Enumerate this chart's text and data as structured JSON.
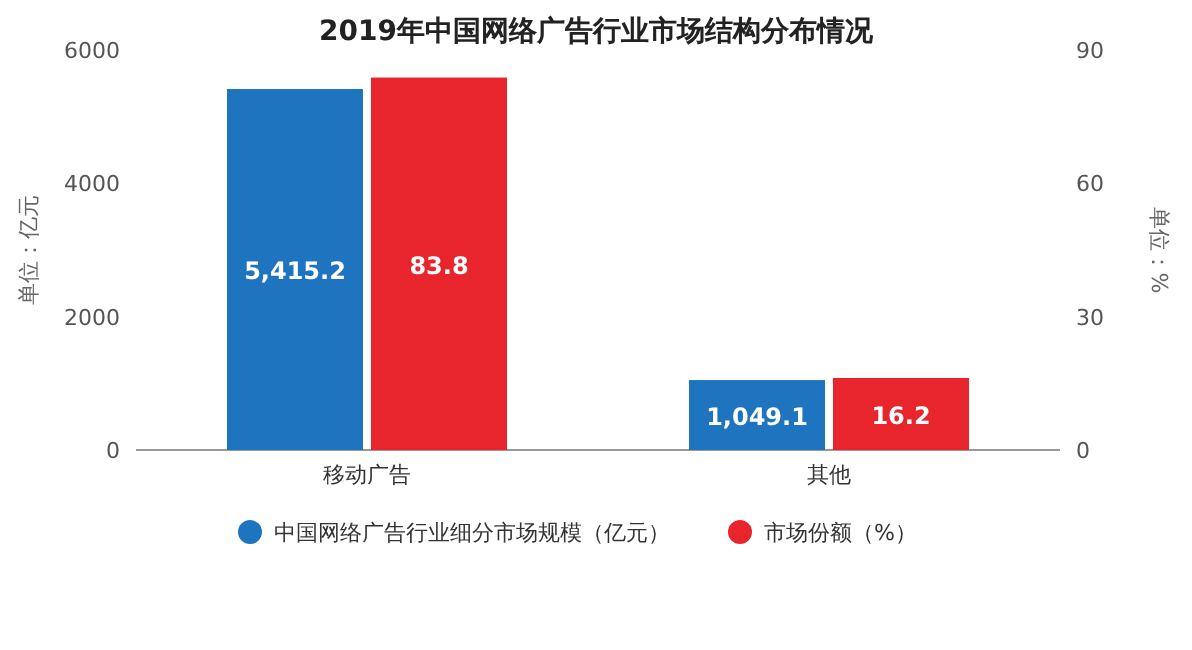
{
  "chart_data": {
    "type": "bar",
    "title": "2019年中国网络广告行业市场结构分布情况",
    "ylabel": "单位：亿元",
    "y2label": "单位：%",
    "categories": [
      "移动广告",
      "其他"
    ],
    "series": [
      {
        "name": "中国网络广告行业细分市场规模（亿元）",
        "color": "#1f74bf",
        "values": [
          5415.2,
          1049.1
        ],
        "value_labels": [
          "5,415.2",
          "1,049.1"
        ]
      },
      {
        "name": "市场份额（%）",
        "color": "#e8242c",
        "values": [
          83.8,
          16.2
        ],
        "axis": "y2",
        "value_labels": [
          "83.8",
          "16.2"
        ]
      }
    ],
    "ylim": [
      0,
      6000
    ],
    "yticks": [
      0,
      2000,
      4000,
      6000
    ],
    "y2lim": [
      0,
      90
    ],
    "y2ticks": [
      0,
      30,
      60,
      90
    ],
    "legend": "bottom"
  }
}
